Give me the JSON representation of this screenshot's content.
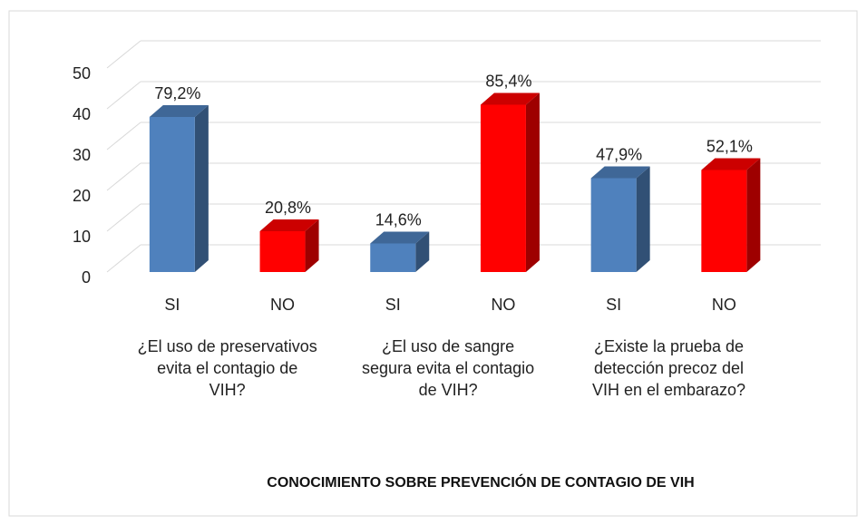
{
  "chart_data": {
    "type": "bar3d",
    "title": "CONOCIMIENTO SOBRE PREVENCIÓN DE CONTAGIO DE VIH",
    "categories": [
      "SI",
      "NO",
      "SI",
      "NO",
      "SI",
      "NO"
    ],
    "groups": [
      "¿El uso de preservativos evita el contagio de VIH?",
      "¿El uso de sangre segura evita el contagio de VIH?",
      "¿Existe la prueba de detección precoz del VIH en el embarazo?"
    ],
    "values": [
      38,
      10,
      7,
      41,
      23,
      25
    ],
    "value_labels": [
      "79,2%",
      "20,8%",
      "14,6%",
      "85,4%",
      "47,9%",
      "52,1%"
    ],
    "colors": [
      "#4f81bd",
      "#ff0000",
      "#4f81bd",
      "#ff0000",
      "#4f81bd",
      "#ff0000"
    ],
    "ylim": [
      0,
      50
    ],
    "yticks": [
      0,
      10,
      20,
      30,
      40,
      50
    ],
    "grid": true
  }
}
